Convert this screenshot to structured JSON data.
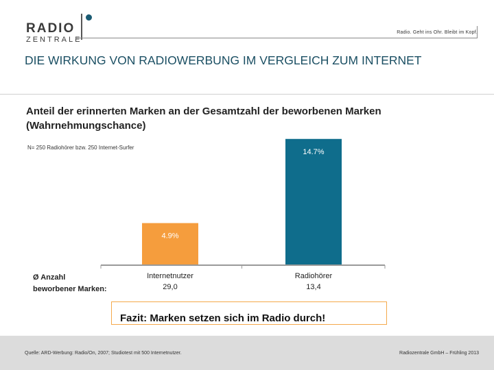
{
  "header": {
    "logo_line1": "RADIO",
    "logo_line2": "ZENTRALE",
    "tagline": "Radio. Geht ins Ohr. Bleibt im Kopf."
  },
  "title": "DIE WIRKUNG VON RADIOWERBUNG IM VERGLEICH ZUM INTERNET",
  "subtitle": "Anteil der erinnerten Marken an der Gesamtzahl der beworbenen Marken (Wahrnehmungschance)",
  "sample_note": "N= 250 Radiohörer bzw. 250 Internet-Surfer",
  "avg_label": {
    "line1": "Ø Anzahl",
    "line2": "beworbener Marken:"
  },
  "chart_data": {
    "type": "bar",
    "categories": [
      "Internetnutzer",
      "Radiohörer"
    ],
    "category_values": [
      "29,0",
      "13,4"
    ],
    "values": [
      4.9,
      14.7
    ],
    "value_labels": [
      "4.9%",
      "14.7%"
    ],
    "colors": [
      "#f59d3d",
      "#0f6d8c"
    ],
    "ylim": [
      0,
      15
    ],
    "grid": false
  },
  "fazit": "Fazit: Marken setzen sich im Radio durch!",
  "footer": {
    "source": "Quelle: ARD-Werbung: Radio/On, 2007; Studiotest mit 500 Internetnutzer.",
    "copyright": "Radiozentrale GmbH – Frühling 2013"
  }
}
